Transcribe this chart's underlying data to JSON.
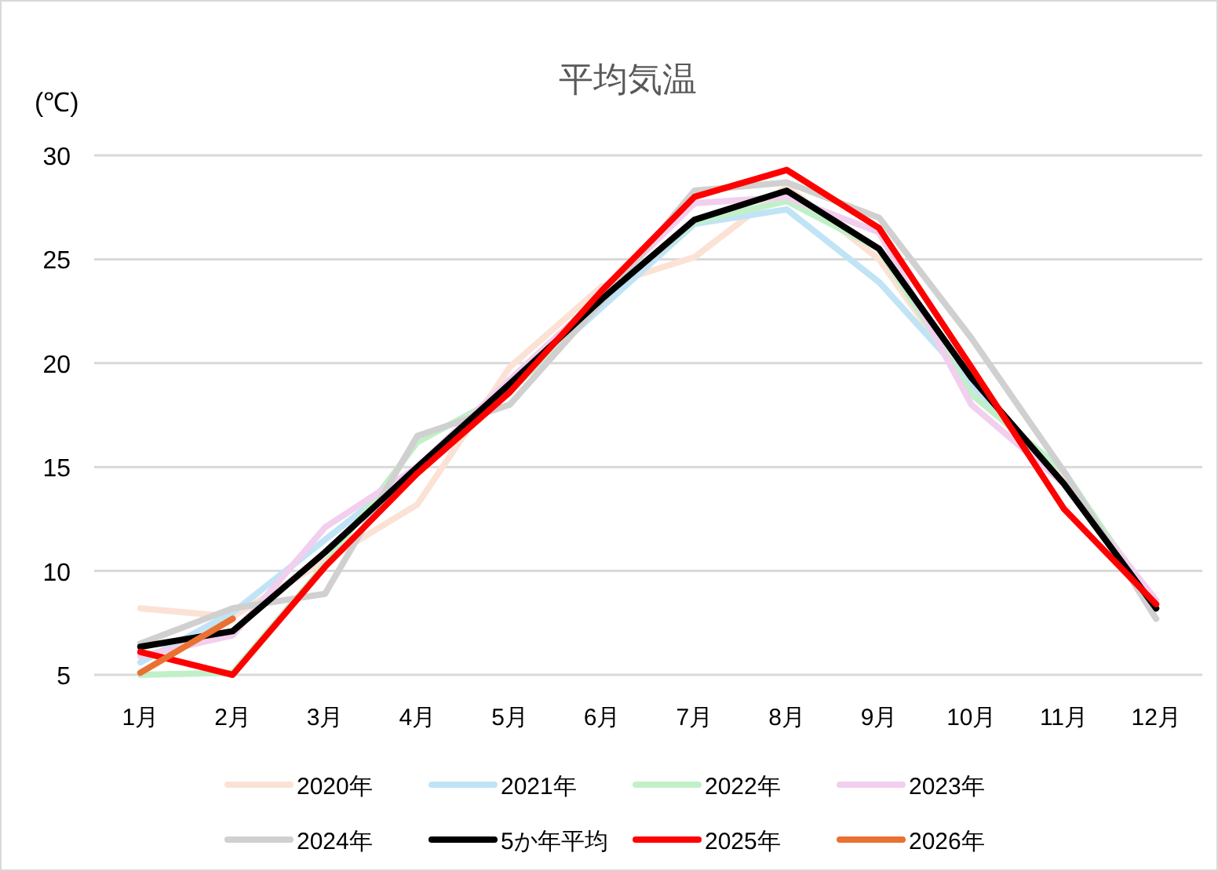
{
  "chart_data": {
    "type": "line",
    "title": "平均気温",
    "ylabel": "(℃)",
    "categories": [
      "1月",
      "2月",
      "3月",
      "4月",
      "5月",
      "6月",
      "7月",
      "8月",
      "9月",
      "10月",
      "11月",
      "12月"
    ],
    "ylim": [
      5,
      30
    ],
    "yticks": [
      5,
      10,
      15,
      20,
      25,
      30
    ],
    "grid": "y",
    "legend": "bottom",
    "marker": "none",
    "line_style": "solid",
    "series": [
      {
        "name": "2020年",
        "color": "#fbe2d5",
        "values": [
          8.2,
          7.8,
          10.5,
          13.2,
          19.8,
          23.7,
          25.1,
          28.5,
          25.0,
          18.7,
          14.5,
          8.5
        ]
      },
      {
        "name": "2021年",
        "color": "#c0e4f5",
        "values": [
          5.6,
          8.0,
          11.5,
          15.0,
          18.7,
          22.7,
          26.7,
          27.4,
          23.9,
          19.0,
          14.2,
          8.3
        ]
      },
      {
        "name": "2022年",
        "color": "#c1f0c8",
        "values": [
          5.0,
          5.1,
          10.3,
          16.2,
          18.6,
          23.2,
          26.8,
          27.8,
          25.5,
          18.5,
          14.8,
          8.2
        ]
      },
      {
        "name": "2023年",
        "color": "#f2cfee",
        "values": [
          5.9,
          6.9,
          12.1,
          15.0,
          19.2,
          23.3,
          27.7,
          28.0,
          26.3,
          18.0,
          14.2,
          8.6
        ]
      },
      {
        "name": "2024年",
        "color": "#d0d0d0",
        "values": [
          6.5,
          8.2,
          8.9,
          16.5,
          18.0,
          23.0,
          28.3,
          28.7,
          27.0,
          21.2,
          14.8,
          7.7
        ]
      },
      {
        "name": "5か年平均",
        "color": "#000000",
        "values": [
          6.35,
          7.1,
          10.9,
          15.0,
          19.0,
          23.1,
          26.9,
          28.3,
          25.5,
          19.3,
          14.2,
          8.2
        ]
      },
      {
        "name": "2025年",
        "color": "#ff0000",
        "values": [
          6.1,
          5.0,
          10.2,
          14.7,
          18.6,
          23.5,
          28.0,
          29.3,
          26.5,
          19.8,
          13.0,
          8.4
        ]
      },
      {
        "name": "2026年",
        "color": "#e97132",
        "values": [
          5.1,
          7.7,
          null,
          null,
          null,
          null,
          null,
          null,
          null,
          null,
          null,
          null
        ]
      }
    ]
  }
}
